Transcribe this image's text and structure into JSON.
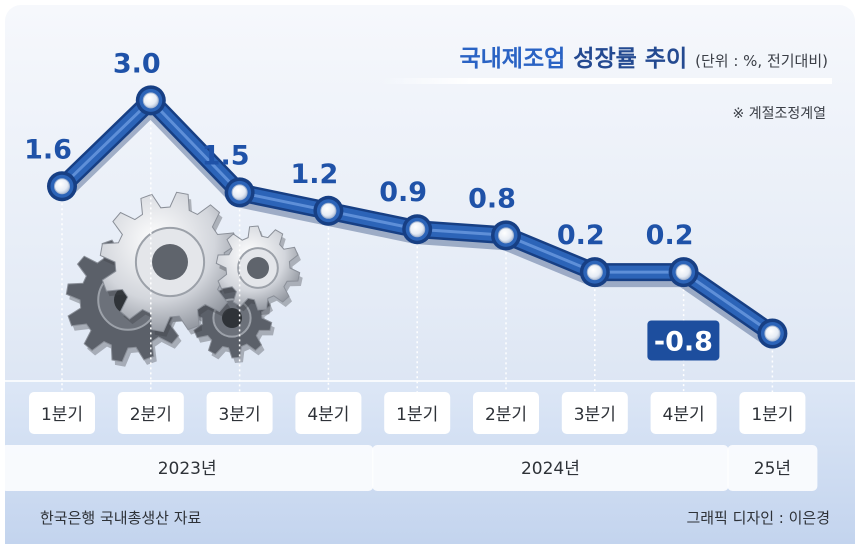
{
  "title": {
    "main": "국내제조업",
    "sub": "성장률 추이",
    "unit": "(단위 : %, 전기대비)"
  },
  "note": "※ 계절조정계열",
  "source": "한국은행 국내총생산 자료",
  "credit": "그래픽 디자인 : 이은경",
  "chart_data": {
    "type": "line",
    "categories": [
      "1분기",
      "2분기",
      "3분기",
      "4분기",
      "1분기",
      "2분기",
      "3분기",
      "4분기",
      "1분기"
    ],
    "year_groups": [
      {
        "label": "2023년",
        "span": 4
      },
      {
        "label": "2024년",
        "span": 4
      },
      {
        "label": "25년",
        "span": 1
      }
    ],
    "series": [
      {
        "values": [
          1.6,
          3.0,
          1.5,
          1.2,
          0.9,
          0.8,
          0.2,
          0.2,
          -0.8
        ],
        "labels": [
          "1.6",
          "3.0",
          "1.5",
          "1.2",
          "0.9",
          "0.8",
          "0.2",
          "0.2",
          "-0.8"
        ]
      }
    ],
    "ylim": [
      -1.2,
      3.3
    ],
    "grid": false,
    "legend": "none",
    "colors": {
      "line": "#2c64b8",
      "line_dark": "#173f84",
      "label": "#1f52a8",
      "negative_box": "#1d4e9e"
    }
  }
}
